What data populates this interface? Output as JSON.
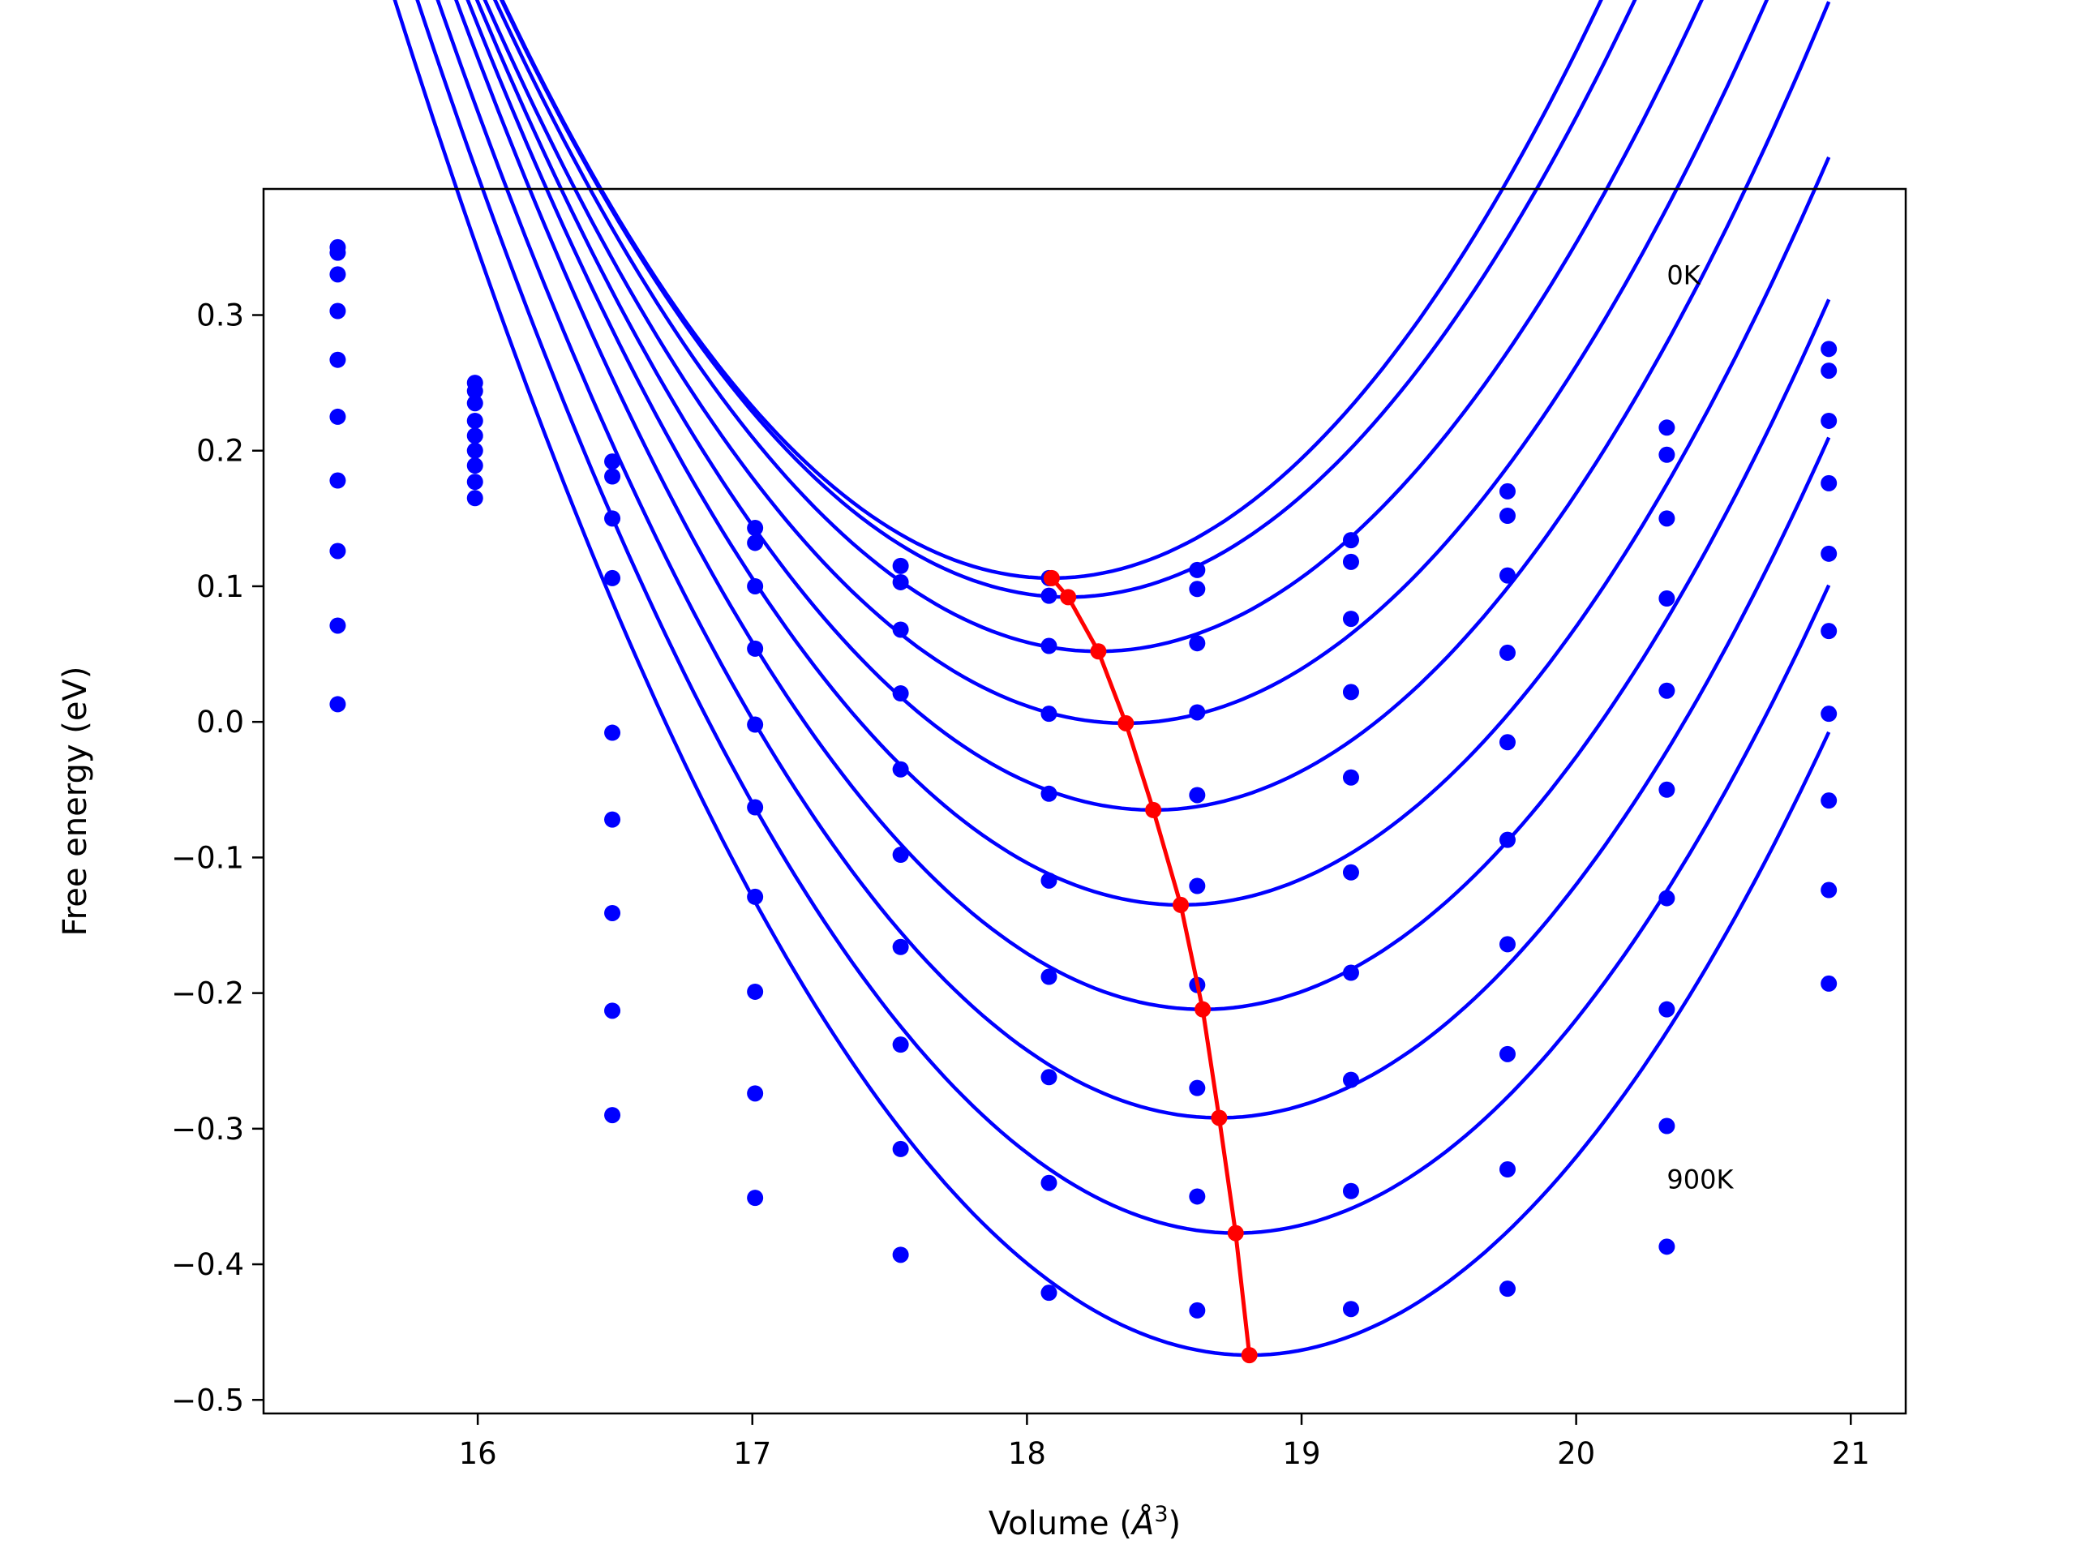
{
  "chart_data": {
    "type": "scatter",
    "title": "",
    "xlabel": "Volume (Å³)",
    "xlabel_parts": {
      "prefix": "Volume (",
      "unit_base": "Å",
      "unit_exp": "3",
      "suffix": ")"
    },
    "ylabel": "Free energy (eV)",
    "xlim": [
      15.22,
      21.2
    ],
    "ylim": [
      -0.51,
      0.393
    ],
    "xticks": [
      16,
      17,
      18,
      19,
      20,
      21
    ],
    "xtick_labels": [
      "16",
      "17",
      "18",
      "19",
      "20",
      "21"
    ],
    "yticks": [
      -0.5,
      -0.4,
      -0.3,
      -0.2,
      -0.1,
      0.0,
      0.1,
      0.2,
      0.3
    ],
    "ytick_labels": [
      "−0.5",
      "−0.4",
      "−0.3",
      "−0.2",
      "−0.1",
      "0.0",
      "0.1",
      "0.2",
      "0.3"
    ],
    "grid": false,
    "colors": {
      "points": "#0000ff",
      "fits": "#0000ff",
      "minima": "#ff0000"
    },
    "annotations": [
      {
        "text": "0K",
        "x": 20.33,
        "y": 0.33
      },
      {
        "text": "900K",
        "x": 20.33,
        "y": -0.337
      }
    ],
    "volumes": [
      15.49,
      15.99,
      16.49,
      17.01,
      17.54,
      18.08,
      18.62,
      19.18,
      19.75,
      20.33,
      20.92
    ],
    "series": [
      {
        "x": [
          15.49,
          15.99,
          16.49,
          17.01,
          17.54,
          18.08,
          18.62,
          19.18,
          19.75,
          20.33,
          20.92
        ],
        "y": [
          0.35,
          0.25,
          0.192,
          0.143,
          0.115,
          0.106,
          0.112,
          0.134,
          0.17,
          0.217,
          0.275
        ],
        "fit": {
          "vmin": 18.09,
          "emin": 0.106,
          "curvature": 0.1065,
          "range": [
            15.5,
            20.92
          ]
        }
      },
      {
        "x": [
          15.49,
          15.99,
          16.49,
          17.01,
          17.54,
          18.08,
          18.62,
          19.18,
          19.75,
          20.33,
          20.92
        ],
        "y": [
          0.346,
          0.244,
          0.181,
          0.132,
          0.103,
          0.093,
          0.098,
          0.118,
          0.152,
          0.197,
          0.259
        ],
        "fit": {
          "vmin": 18.15,
          "emin": 0.092,
          "curvature": 0.1034,
          "range": [
            15.5,
            20.92
          ]
        }
      },
      {
        "x": [
          15.49,
          15.99,
          16.49,
          17.01,
          17.54,
          18.08,
          18.62,
          19.18,
          19.75,
          20.33,
          20.92
        ],
        "y": [
          0.33,
          0.235,
          0.15,
          0.1,
          0.068,
          0.056,
          0.058,
          0.076,
          0.108,
          0.15,
          0.222
        ],
        "fit": {
          "vmin": 18.26,
          "emin": 0.052,
          "curvature": 0.0995,
          "range": [
            15.5,
            20.92
          ]
        }
      },
      {
        "x": [
          15.49,
          15.99,
          16.49,
          17.01,
          17.54,
          18.08,
          18.62,
          19.18,
          19.75,
          20.33,
          20.92
        ],
        "y": [
          0.303,
          0.222,
          0.106,
          0.054,
          0.021,
          0.006,
          0.007,
          0.022,
          0.051,
          0.091,
          0.176
        ],
        "fit": {
          "vmin": 18.36,
          "emin": -0.001,
          "curvature": 0.0979,
          "range": [
            15.5,
            20.92
          ]
        }
      },
      {
        "x": [
          15.49,
          15.99,
          16.49,
          17.01,
          17.54,
          18.08,
          18.62,
          19.18,
          19.75,
          20.33,
          20.92
        ],
        "y": [
          0.267,
          0.211,
          -0.008,
          -0.002,
          -0.035,
          -0.053,
          -0.054,
          -0.041,
          -0.015,
          0.023,
          0.124
        ],
        "fit": {
          "vmin": 18.46,
          "emin": -0.065,
          "curvature": 0.0985,
          "range": [
            15.5,
            20.92
          ]
        }
      },
      {
        "x": [
          15.49,
          15.99,
          16.49,
          17.01,
          17.54,
          18.08,
          18.62,
          19.18,
          19.75,
          20.33,
          20.92
        ],
        "y": [
          0.225,
          0.2,
          -0.072,
          -0.063,
          -0.098,
          -0.117,
          -0.121,
          -0.111,
          -0.087,
          -0.05,
          0.067
        ],
        "fit": {
          "vmin": 18.56,
          "emin": -0.135,
          "curvature": 0.099,
          "range": [
            15.5,
            20.92
          ]
        }
      },
      {
        "x": [
          15.49,
          15.99,
          16.49,
          17.01,
          17.54,
          18.08,
          18.62,
          19.18,
          19.75,
          20.33,
          20.92
        ],
        "y": [
          0.178,
          0.189,
          -0.141,
          -0.129,
          -0.166,
          -0.188,
          -0.194,
          -0.185,
          -0.164,
          -0.13,
          0.006
        ],
        "fit": {
          "vmin": 18.64,
          "emin": -0.212,
          "curvature": 0.1007,
          "range": [
            15.5,
            20.92
          ]
        }
      },
      {
        "x": [
          15.49,
          15.99,
          16.49,
          17.01,
          17.54,
          18.08,
          18.62,
          19.18,
          19.75,
          20.33,
          20.92
        ],
        "y": [
          0.126,
          0.177,
          -0.213,
          -0.199,
          -0.238,
          -0.262,
          -0.27,
          -0.264,
          -0.245,
          -0.212,
          -0.058
        ],
        "fit": {
          "vmin": 18.7,
          "emin": -0.292,
          "curvature": 0.1018,
          "range": [
            15.5,
            20.92
          ]
        }
      },
      {
        "x": [
          15.49,
          15.99,
          16.49,
          17.01,
          17.54,
          18.08,
          18.62,
          19.18,
          19.75,
          20.33,
          20.92
        ],
        "y": [
          0.071,
          0.165,
          -0.29,
          -0.274,
          -0.315,
          -0.34,
          -0.35,
          -0.346,
          -0.33,
          -0.298,
          -0.124
        ],
        "fit": {
          "vmin": 18.76,
          "emin": -0.377,
          "curvature": 0.1024,
          "range": [
            15.5,
            20.92
          ]
        }
      },
      {
        "x": [
          15.49,
          16.49,
          17.01,
          17.54,
          18.08,
          18.62,
          19.18,
          19.75,
          20.33,
          20.92
        ],
        "y": [
          0.013,
          null,
          -0.351,
          -0.393,
          -0.421,
          -0.434,
          -0.433,
          -0.418,
          -0.387,
          -0.193
        ],
        "fit": {
          "vmin": 18.81,
          "emin": -0.467,
          "curvature": 0.1032,
          "range": [
            15.5,
            20.92
          ]
        }
      }
    ],
    "minima": {
      "name": "",
      "x": [
        18.09,
        18.15,
        18.26,
        18.36,
        18.46,
        18.56,
        18.64,
        18.7,
        18.76,
        18.81
      ],
      "y": [
        0.106,
        0.092,
        0.052,
        -0.001,
        -0.065,
        -0.135,
        -0.212,
        -0.292,
        -0.377,
        -0.467
      ]
    }
  }
}
